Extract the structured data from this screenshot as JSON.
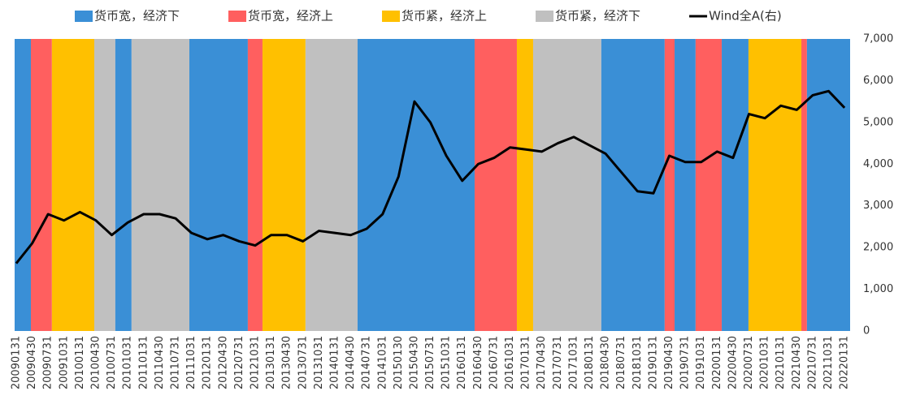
{
  "chart_data": {
    "type": "line",
    "categories": [
      "20090131",
      "20090430",
      "20090731",
      "20091031",
      "20100131",
      "20100430",
      "20100731",
      "20101031",
      "20110131",
      "20110430",
      "20110731",
      "20111031",
      "20120131",
      "20120430",
      "20120731",
      "20121031",
      "20130131",
      "20130430",
      "20130731",
      "20131031",
      "20140131",
      "20140430",
      "20140731",
      "20141031",
      "20150130",
      "20150430",
      "20150731",
      "20151031",
      "20160131",
      "20160430",
      "20160731",
      "20161031",
      "20170131",
      "20170430",
      "20170731",
      "20171031",
      "20180131",
      "20180430",
      "20180731",
      "20181031",
      "20190131",
      "20190430",
      "20190731",
      "20191031",
      "20200131",
      "20200430",
      "20200731",
      "20201031",
      "20210131",
      "20210430",
      "20210731",
      "20211031",
      "20220131"
    ],
    "series": [
      {
        "name": "货币宽，经济下",
        "color": "#3a8fd6"
      },
      {
        "name": "货币宽，经济上",
        "color": "#ff5f5f"
      },
      {
        "name": "货币紧，经济上",
        "color": "#ffc000"
      },
      {
        "name": "货币紧，经济下",
        "color": "#c0c0c0"
      },
      {
        "name": "Wind全A(右)",
        "color": "#000000",
        "axis": "y2",
        "values": [
          1620,
          2100,
          2800,
          2650,
          2850,
          2650,
          2300,
          2600,
          2800,
          2800,
          2700,
          2350,
          2200,
          2300,
          2150,
          2050,
          2300,
          2300,
          2150,
          2400,
          2350,
          2300,
          2450,
          2800,
          3700,
          5500,
          5000,
          4200,
          3600,
          4000,
          4150,
          4400,
          4350,
          4300,
          4500,
          4650,
          4450,
          4250,
          3800,
          3350,
          3300,
          4200,
          4050,
          4050,
          4300,
          4150,
          5200,
          5100,
          5400,
          5300,
          5650,
          5750,
          5350
        ]
      }
    ],
    "bands": [
      {
        "series": 0,
        "from": -0.1,
        "to": 0.92
      },
      {
        "series": 1,
        "from": 0.92,
        "to": 2.24
      },
      {
        "series": 2,
        "from": 2.24,
        "to": 4.9
      },
      {
        "series": 3,
        "from": 4.9,
        "to": 6.22
      },
      {
        "series": 0,
        "from": 6.22,
        "to": 7.24
      },
      {
        "series": 3,
        "from": 7.24,
        "to": 10.87
      },
      {
        "series": 0,
        "from": 10.87,
        "to": 14.54
      },
      {
        "series": 1,
        "from": 14.54,
        "to": 15.46
      },
      {
        "series": 2,
        "from": 15.46,
        "to": 18.16
      },
      {
        "series": 3,
        "from": 18.16,
        "to": 21.43
      },
      {
        "series": 0,
        "from": 21.43,
        "to": 28.78
      },
      {
        "series": 1,
        "from": 28.78,
        "to": 31.43
      },
      {
        "series": 2,
        "from": 31.43,
        "to": 32.45
      },
      {
        "series": 3,
        "from": 32.45,
        "to": 36.73
      },
      {
        "series": 0,
        "from": 36.73,
        "to": 40.71
      },
      {
        "series": 1,
        "from": 40.71,
        "to": 41.33
      },
      {
        "series": 0,
        "from": 41.33,
        "to": 42.65
      },
      {
        "series": 1,
        "from": 42.65,
        "to": 44.29
      },
      {
        "series": 0,
        "from": 44.29,
        "to": 45.97
      },
      {
        "series": 2,
        "from": 45.97,
        "to": 49.29
      },
      {
        "series": 1,
        "from": 49.29,
        "to": 49.64
      },
      {
        "series": 0,
        "from": 49.64,
        "to": 52.35
      }
    ],
    "xlim": [
      -0.1,
      52.35
    ],
    "y2lim": [
      0,
      7000
    ],
    "y2ticks": [
      0,
      {
        "value": 1000,
        "label": "1,000"
      },
      {
        "value": 2000,
        "label": "2,000"
      },
      {
        "value": 3000,
        "label": "3,000"
      },
      {
        "value": 4000,
        "label": "4,000"
      },
      {
        "value": 5000,
        "label": "5,000"
      },
      {
        "value": 6000,
        "label": "6,000"
      },
      {
        "value": 7000,
        "label": "7,000"
      }
    ],
    "legend": "top"
  }
}
